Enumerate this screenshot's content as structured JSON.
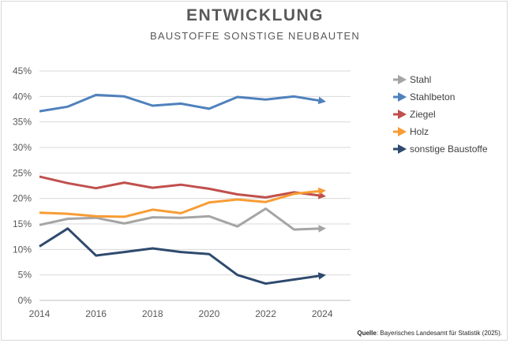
{
  "chart_data": {
    "type": "line",
    "title": "ENTWICKLUNG",
    "subtitle": "BAUSTOFFE SONSTIGE NEUBAUTEN",
    "x": [
      2014,
      2015,
      2016,
      2017,
      2018,
      2019,
      2020,
      2021,
      2022,
      2023,
      2024
    ],
    "xlim": [
      2014,
      2025
    ],
    "xticks": [
      "2014",
      "2016",
      "2018",
      "2020",
      "2022",
      "2024"
    ],
    "ylim": [
      0,
      45
    ],
    "yticks": [
      "0%",
      "5%",
      "10%",
      "15%",
      "20%",
      "25%",
      "30%",
      "35%",
      "40%",
      "45%"
    ],
    "grid": true,
    "legend_position": "right",
    "series": [
      {
        "name": "Stahl",
        "color": "#a5a5a5",
        "values": [
          14.8,
          16.0,
          16.2,
          15.1,
          16.3,
          16.2,
          16.5,
          14.5,
          18.0,
          13.9,
          14.1
        ]
      },
      {
        "name": "Stahlbeton",
        "color": "#4f81bd",
        "values": [
          37.1,
          38.0,
          40.3,
          40.0,
          38.2,
          38.6,
          37.6,
          39.9,
          39.4,
          40.0,
          39.1
        ]
      },
      {
        "name": "Ziegel",
        "color": "#c0504d",
        "values": [
          24.3,
          23.0,
          22.0,
          23.1,
          22.1,
          22.7,
          21.9,
          20.8,
          20.2,
          21.2,
          20.5
        ]
      },
      {
        "name": "Holz",
        "color": "#f79c34",
        "values": [
          17.2,
          17.0,
          16.5,
          16.4,
          17.8,
          17.1,
          19.2,
          19.8,
          19.3,
          20.9,
          21.5
        ]
      },
      {
        "name": "sonstige Baustoffe",
        "color": "#2e4a6e",
        "values": [
          10.6,
          14.1,
          8.8,
          9.5,
          10.2,
          9.5,
          9.1,
          5.0,
          3.3,
          4.1,
          4.9
        ]
      }
    ]
  },
  "source": {
    "label": "Quelle",
    "text": ": Bayerisches Landesamt für Statistik (2025)."
  }
}
